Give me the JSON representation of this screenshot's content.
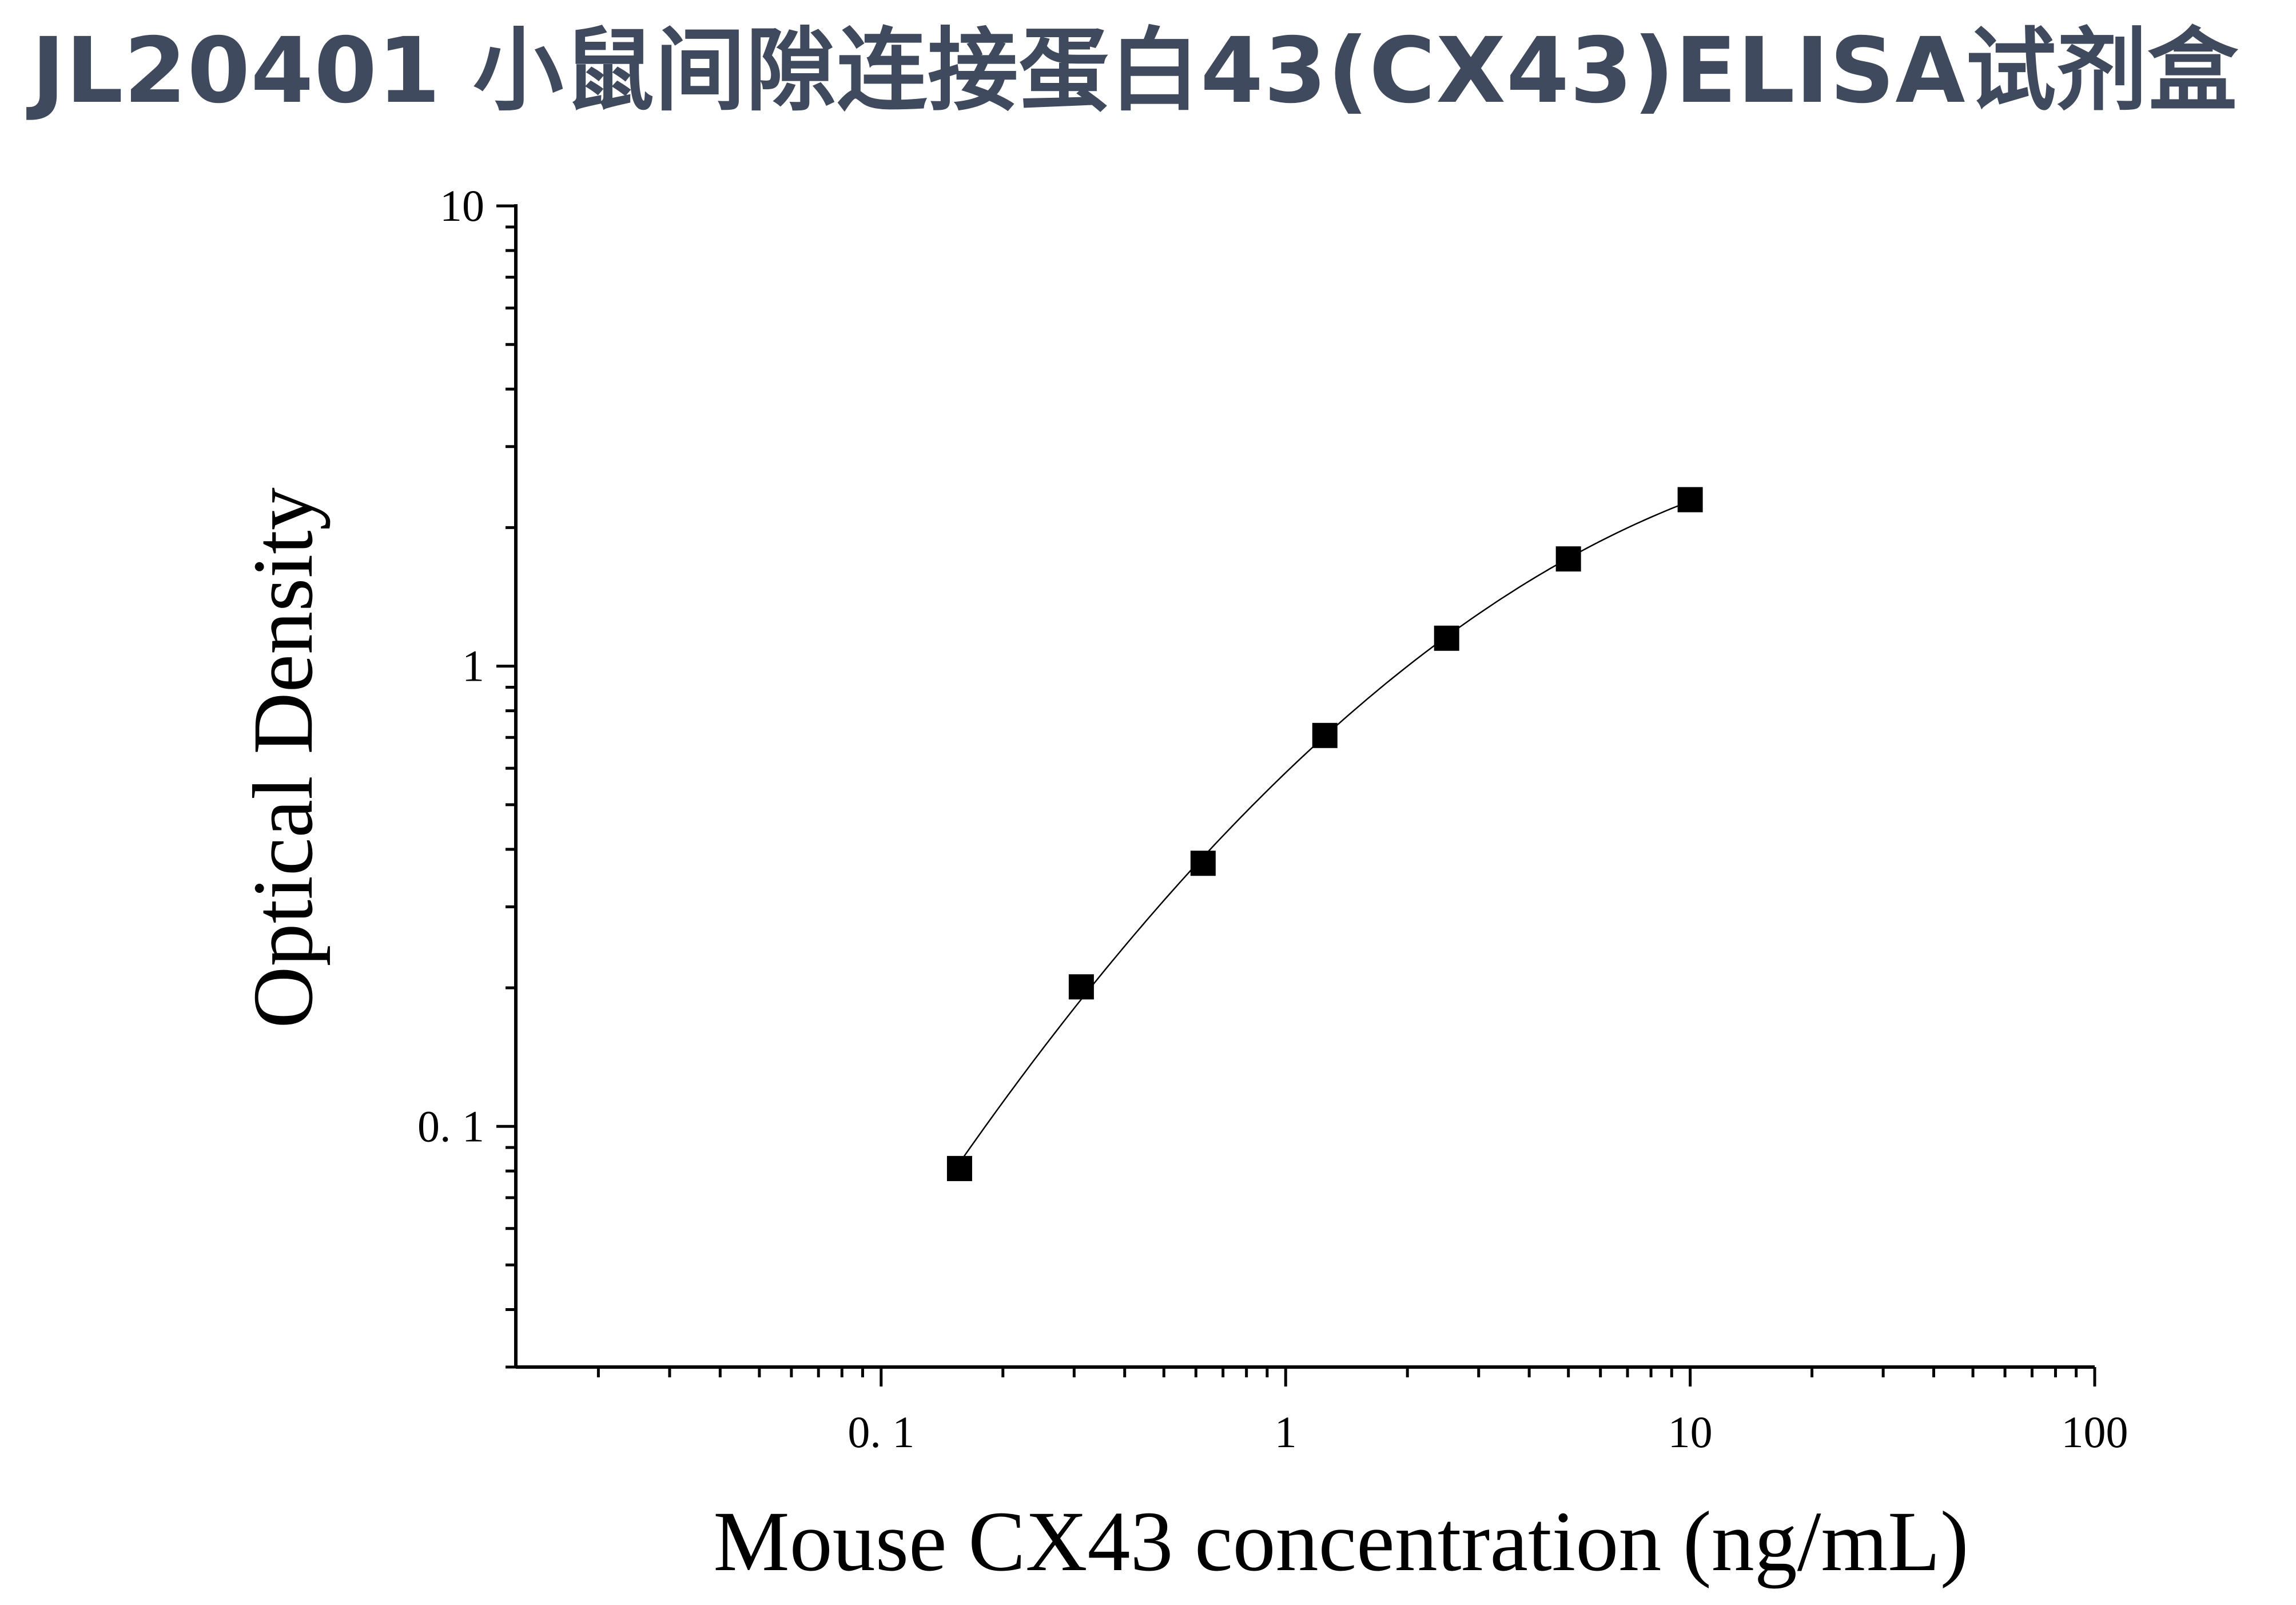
{
  "page": {
    "title": "JL20401 小鼠间隙连接蛋白43(CX43)ELISA试剂盒"
  },
  "chart_data": {
    "type": "scatter",
    "xlabel": "Mouse CX43 concentration (ng/mL)",
    "ylabel": "Optical Density",
    "x_scale": "log",
    "y_scale": "log",
    "xlim": [
      0.0125,
      100
    ],
    "ylim": [
      0.03,
      10
    ],
    "x_ticks": [
      {
        "value": 0.1,
        "label": "0. 1"
      },
      {
        "value": 1,
        "label": "1"
      },
      {
        "value": 10,
        "label": "10"
      },
      {
        "value": 100,
        "label": "100"
      }
    ],
    "y_ticks": [
      {
        "value": 0.1,
        "label": "0. 1"
      },
      {
        "value": 1,
        "label": "1"
      },
      {
        "value": 10,
        "label": "10"
      }
    ],
    "grid": false,
    "legend": "none",
    "marker": "square",
    "series": [
      {
        "x": [
          0.15625,
          0.3125,
          0.625,
          1.25,
          2.5,
          5,
          10
        ],
        "y": [
          0.081,
          0.201,
          0.373,
          0.707,
          1.15,
          1.71,
          2.3
        ],
        "fit_curve": true
      }
    ],
    "colors": {
      "title": "#3f4a5e",
      "marks": "#000000"
    }
  }
}
